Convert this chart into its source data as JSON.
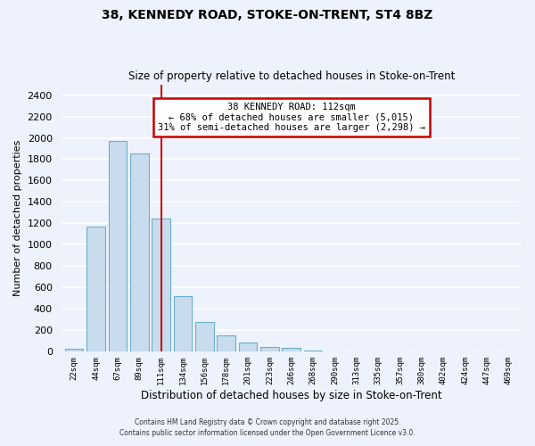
{
  "title": "38, KENNEDY ROAD, STOKE-ON-TRENT, ST4 8BZ",
  "subtitle": "Size of property relative to detached houses in Stoke-on-Trent",
  "xlabel": "Distribution of detached houses by size in Stoke-on-Trent",
  "ylabel": "Number of detached properties",
  "bar_labels": [
    "22sqm",
    "44sqm",
    "67sqm",
    "89sqm",
    "111sqm",
    "134sqm",
    "156sqm",
    "178sqm",
    "201sqm",
    "223sqm",
    "246sqm",
    "268sqm",
    "290sqm",
    "313sqm",
    "335sqm",
    "357sqm",
    "380sqm",
    "402sqm",
    "424sqm",
    "447sqm",
    "469sqm"
  ],
  "bar_values": [
    25,
    1170,
    1975,
    1855,
    1245,
    520,
    275,
    150,
    85,
    45,
    35,
    10,
    5,
    2,
    1,
    0,
    0,
    0,
    0,
    0,
    0
  ],
  "bar_color": "#c8dcee",
  "bar_edge_color": "#6aafcc",
  "marker_index": 4,
  "marker_label": "38 KENNEDY ROAD: 112sqm",
  "annotation_line1": "← 68% of detached houses are smaller (5,015)",
  "annotation_line2": "31% of semi-detached houses are larger (2,298) →",
  "annotation_box_color": "#ffffff",
  "annotation_box_edge": "#cc0000",
  "vline_color": "#cc1111",
  "ylim": [
    0,
    2500
  ],
  "yticks": [
    0,
    200,
    400,
    600,
    800,
    1000,
    1200,
    1400,
    1600,
    1800,
    2000,
    2200,
    2400
  ],
  "bg_color": "#eef2fc",
  "grid_color": "#ffffff",
  "footer1": "Contains HM Land Registry data © Crown copyright and database right 2025.",
  "footer2": "Contains public sector information licensed under the Open Government Licence v3.0."
}
